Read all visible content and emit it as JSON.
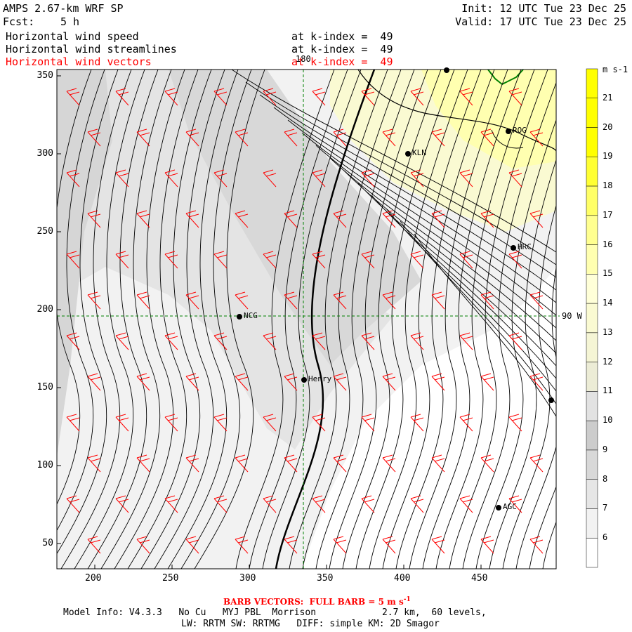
{
  "header": {
    "model_title": "AMPS 2.67-km WRF SP",
    "init": "Init: 12 UTC Tue 23 Dec 25",
    "forecast_label": "Fcst:",
    "forecast_hours": "5 h",
    "valid": "Valid: 17 UTC Tue 23 Dec 25"
  },
  "fields": [
    {
      "name": "Horizontal wind speed",
      "level": "at k-index =  49",
      "color": "#000000"
    },
    {
      "name": "Horizontal wind streamlines",
      "level": "at k-index =  49",
      "color": "#000000"
    },
    {
      "name": "Horizontal wind vectors",
      "level": "at k-index =  49",
      "color": "#ff0000"
    }
  ],
  "map": {
    "x_ticks": [
      "200",
      "250",
      "300",
      "350",
      "400",
      "450"
    ],
    "y_ticks": [
      "50",
      "100",
      "150",
      "200",
      "250",
      "300",
      "350"
    ],
    "meridian_label": "180",
    "parallel_label": "90 W",
    "stations": [
      {
        "id": "NCG",
        "label": "NCG"
      },
      {
        "id": "KLN",
        "label": "KLN"
      },
      {
        "id": "ROG",
        "label": "ROG"
      },
      {
        "id": "HRC",
        "label": "HRC"
      },
      {
        "id": "Henry",
        "label": "Henry"
      },
      {
        "id": "AGC",
        "label": "AGC"
      }
    ]
  },
  "colorbar": {
    "unit": "m s-1",
    "levels": [
      "6",
      "7",
      "8",
      "9",
      "10",
      "11",
      "12",
      "13",
      "14",
      "15",
      "16",
      "17",
      "18",
      "19",
      "20",
      "21"
    ],
    "colors": [
      "#ffffff",
      "#f2f2f2",
      "#e6e6e6",
      "#d8d8d8",
      "#cccccc",
      "#e2e2e2",
      "#ececd6",
      "#f5f5d5",
      "#fafad2",
      "#ffffd8",
      "#ffffb0",
      "#ffff90",
      "#ffff66",
      "#ffff33",
      "#ffff00",
      "#ffff00",
      "#ffff00"
    ]
  },
  "footer": {
    "barb_prefix": "BARB VECTORS:  FULL BARB = 5 m s",
    "barb_exponent": "-1",
    "model_info": "Model Info: V4.3.3   No Cu   MYJ PBL  Morrison            2.7 km,  60 levels,",
    "physics": "LW: RRTM SW: RRTMG   DIFF: simple KM: 2D Smagor"
  }
}
